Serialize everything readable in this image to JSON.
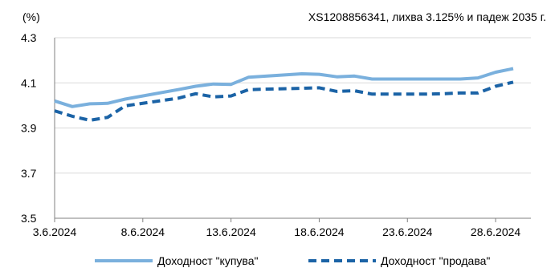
{
  "chart_data": {
    "type": "line",
    "title": "XS1208856341, лихва 3.125% и падеж 2035 г.",
    "ylabel": "(%)",
    "xlabel": "",
    "ylim": [
      3.5,
      4.3
    ],
    "yticks": [
      "4.3",
      "4.1",
      "3.9",
      "3.7",
      "3.5"
    ],
    "ytick_values": [
      4.3,
      4.1,
      3.9,
      3.7,
      3.5
    ],
    "xticks": [
      "3.6.2024",
      "8.6.2024",
      "13.6.2024",
      "18.6.2024",
      "23.6.2024",
      "28.6.2024"
    ],
    "xtick_dates": [
      "2024-06-03",
      "2024-06-08",
      "2024-06-13",
      "2024-06-18",
      "2024-06-23",
      "2024-06-28"
    ],
    "x_range": [
      "2024-06-03",
      "2024-06-30"
    ],
    "grid": "horizontal",
    "legend_position": "bottom",
    "x": [
      "2024-06-03",
      "2024-06-04",
      "2024-06-05",
      "2024-06-06",
      "2024-06-07",
      "2024-06-10",
      "2024-06-11",
      "2024-06-12",
      "2024-06-13",
      "2024-06-14",
      "2024-06-17",
      "2024-06-18",
      "2024-06-19",
      "2024-06-20",
      "2024-06-21",
      "2024-06-24",
      "2024-06-25",
      "2024-06-26",
      "2024-06-27",
      "2024-06-28",
      "2024-06-29"
    ],
    "series": [
      {
        "name": "Доходност \"купува\"",
        "style": "solid",
        "color": "#7ab0dd",
        "values": [
          4.02,
          3.995,
          4.007,
          4.009,
          4.028,
          4.07,
          4.085,
          4.095,
          4.093,
          4.125,
          4.14,
          4.138,
          4.127,
          4.13,
          4.117,
          4.117,
          4.117,
          4.117,
          4.122,
          4.147,
          4.163
        ]
      },
      {
        "name": "Доходност \"продава\"",
        "style": "dashed",
        "color": "#1b63a6",
        "values": [
          3.976,
          3.952,
          3.934,
          3.947,
          3.998,
          4.032,
          4.052,
          4.038,
          4.042,
          4.07,
          4.076,
          4.078,
          4.062,
          4.065,
          4.05,
          4.05,
          4.052,
          4.055,
          4.055,
          4.085,
          4.103
        ]
      }
    ]
  }
}
